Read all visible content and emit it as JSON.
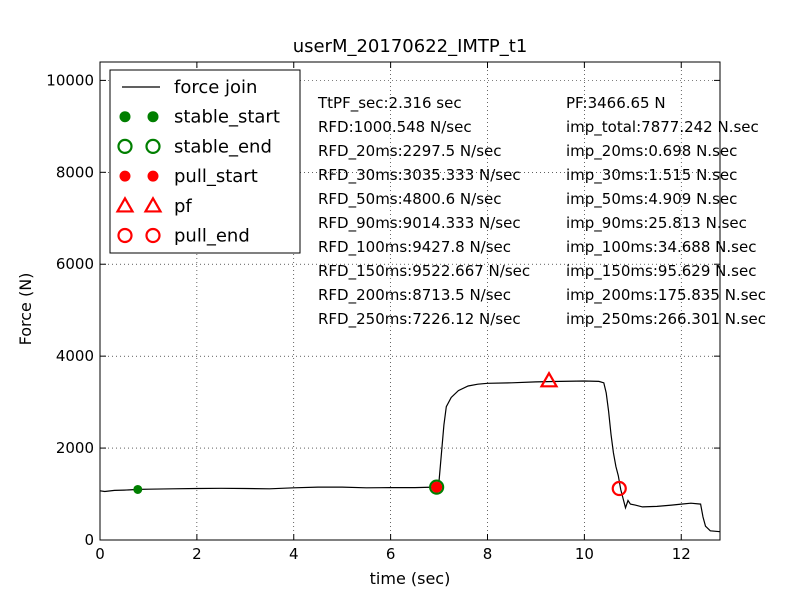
{
  "chart_data": {
    "type": "line",
    "title": "userM_20170622_IMTP_t1",
    "xlabel": "time (sec)",
    "ylabel": "Force (N)",
    "xlim": [
      0,
      12.8
    ],
    "ylim": [
      0,
      10400
    ],
    "xticks": [
      0,
      2,
      4,
      6,
      8,
      10,
      12
    ],
    "yticks": [
      0,
      2000,
      4000,
      6000,
      8000,
      10000
    ],
    "grid": true,
    "legend_position": "upper-left",
    "legend": [
      {
        "label": "force join",
        "marker": "line",
        "color": "#000000"
      },
      {
        "label": "stable_start",
        "marker": "filled-circle",
        "color": "#007f00"
      },
      {
        "label": "stable_end",
        "marker": "open-circle",
        "color": "#007f00"
      },
      {
        "label": "pull_start",
        "marker": "filled-circle",
        "color": "#ff0000"
      },
      {
        "label": "pf",
        "marker": "open-triangle",
        "color": "#ff0000"
      },
      {
        "label": "pull_end",
        "marker": "open-circle",
        "color": "#ff0000"
      }
    ],
    "series": [
      {
        "name": "force join",
        "color": "#000000",
        "points": [
          [
            0.0,
            1070
          ],
          [
            0.1,
            1055
          ],
          [
            0.3,
            1080
          ],
          [
            0.5,
            1085
          ],
          [
            0.8,
            1100
          ],
          [
            1.0,
            1105
          ],
          [
            1.5,
            1115
          ],
          [
            2.0,
            1120
          ],
          [
            2.5,
            1125
          ],
          [
            3.0,
            1120
          ],
          [
            3.5,
            1115
          ],
          [
            4.0,
            1135
          ],
          [
            4.5,
            1150
          ],
          [
            5.0,
            1150
          ],
          [
            5.5,
            1135
          ],
          [
            6.0,
            1140
          ],
          [
            6.5,
            1140
          ],
          [
            6.9,
            1150
          ],
          [
            6.95,
            1180
          ],
          [
            7.0,
            1300
          ],
          [
            7.05,
            1900
          ],
          [
            7.1,
            2500
          ],
          [
            7.15,
            2900
          ],
          [
            7.25,
            3100
          ],
          [
            7.4,
            3250
          ],
          [
            7.6,
            3350
          ],
          [
            7.8,
            3390
          ],
          [
            8.0,
            3410
          ],
          [
            8.5,
            3420
          ],
          [
            9.0,
            3440
          ],
          [
            9.5,
            3450
          ],
          [
            10.0,
            3460
          ],
          [
            10.3,
            3450
          ],
          [
            10.4,
            3420
          ],
          [
            10.45,
            3200
          ],
          [
            10.5,
            2800
          ],
          [
            10.55,
            2300
          ],
          [
            10.6,
            1900
          ],
          [
            10.65,
            1600
          ],
          [
            10.7,
            1400
          ],
          [
            10.75,
            1100
          ],
          [
            10.8,
            900
          ],
          [
            10.85,
            700
          ],
          [
            10.9,
            860
          ],
          [
            10.95,
            780
          ],
          [
            11.05,
            760
          ],
          [
            11.2,
            720
          ],
          [
            11.5,
            730
          ],
          [
            11.8,
            760
          ],
          [
            12.0,
            780
          ],
          [
            12.2,
            800
          ],
          [
            12.4,
            780
          ],
          [
            12.45,
            500
          ],
          [
            12.5,
            300
          ],
          [
            12.6,
            200
          ],
          [
            12.8,
            180
          ]
        ]
      }
    ],
    "markers": [
      {
        "name": "stable_start",
        "x": 0.78,
        "y": 1100
      },
      {
        "name": "stable_end",
        "x": 6.95,
        "y": 1150
      },
      {
        "name": "pull_start",
        "x": 6.95,
        "y": 1150
      },
      {
        "name": "pf",
        "x": 9.27,
        "y": 3466.65
      },
      {
        "name": "pull_end",
        "x": 10.72,
        "y": 1120
      }
    ],
    "annotations": {
      "left": [
        "TtPF_sec:2.316 sec",
        "RFD:1000.548 N/sec",
        "RFD_20ms:2297.5 N/sec",
        "RFD_30ms:3035.333 N/sec",
        "RFD_50ms:4800.6 N/sec",
        "RFD_90ms:9014.333 N/sec",
        "RFD_100ms:9427.8 N/sec",
        "RFD_150ms:9522.667 N/sec",
        "RFD_200ms:8713.5 N/sec",
        "RFD_250ms:7226.12 N/sec"
      ],
      "right": [
        "PF:3466.65 N",
        "imp_total:7877.242 N.sec",
        "imp_20ms:0.698 N.sec",
        "imp_30ms:1.515 N.sec",
        "imp_50ms:4.909 N.sec",
        "imp_90ms:25.813 N.sec",
        "imp_100ms:34.688 N.sec",
        "imp_150ms:95.629 N.sec",
        "imp_200ms:175.835 N.sec",
        "imp_250ms:266.301 N.sec"
      ]
    }
  }
}
